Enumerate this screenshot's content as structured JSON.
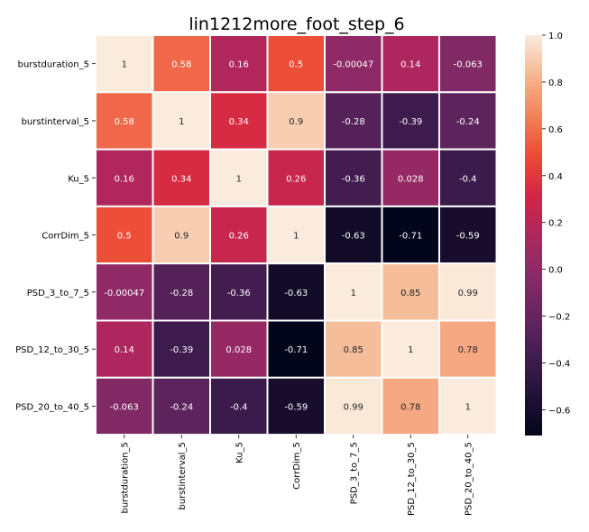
{
  "chart_data": {
    "type": "heatmap",
    "title": "lin1212more_foot_step_6",
    "xlabel": "",
    "ylabel": "",
    "labels": [
      "burstduration_5",
      "burstinterval_5",
      "Ku_5",
      "CorrDim_5",
      "PSD_3_to_7_5",
      "PSD_12_to_30_5",
      "PSD_20_to_40_5"
    ],
    "values": [
      [
        1,
        0.58,
        0.16,
        0.5,
        -0.00047,
        0.14,
        -0.063
      ],
      [
        0.58,
        1,
        0.34,
        0.9,
        -0.28,
        -0.39,
        -0.24
      ],
      [
        0.16,
        0.34,
        1,
        0.26,
        -0.36,
        0.028,
        -0.4
      ],
      [
        0.5,
        0.9,
        0.26,
        1,
        -0.63,
        -0.71,
        -0.59
      ],
      [
        -0.00047,
        -0.28,
        -0.36,
        -0.63,
        1,
        0.85,
        0.99
      ],
      [
        0.14,
        -0.39,
        0.028,
        -0.71,
        0.85,
        1,
        0.78
      ],
      [
        -0.063,
        -0.24,
        -0.4,
        -0.59,
        0.99,
        0.78,
        1
      ]
    ],
    "annotations": [
      [
        "1",
        "0.58",
        "0.16",
        "0.5",
        "-0.00047",
        "0.14",
        "-0.063"
      ],
      [
        "0.58",
        "1",
        "0.34",
        "0.9",
        "-0.28",
        "-0.39",
        "-0.24"
      ],
      [
        "0.16",
        "0.34",
        "1",
        "0.26",
        "-0.36",
        "0.028",
        "-0.4"
      ],
      [
        "0.5",
        "0.9",
        "0.26",
        "1",
        "-0.63",
        "-0.71",
        "-0.59"
      ],
      [
        "-0.00047",
        "-0.28",
        "-0.36",
        "-0.63",
        "1",
        "0.85",
        "0.99"
      ],
      [
        "0.14",
        "-0.39",
        "0.028",
        "-0.71",
        "0.85",
        "1",
        "0.78"
      ],
      [
        "-0.063",
        "-0.24",
        "-0.4",
        "-0.59",
        "0.99",
        "0.78",
        "1"
      ]
    ],
    "colormap": "rocket",
    "vmin": -0.71,
    "vmax": 1.0,
    "colorbar_ticks": [
      1.0,
      0.8,
      0.6,
      0.4,
      0.2,
      0.0,
      -0.2,
      -0.4,
      -0.6
    ],
    "colorbar_tick_labels": [
      "1.0",
      "0.8",
      "0.6",
      "0.4",
      "0.2",
      "0.0",
      "−0.2",
      "−0.4",
      "−0.6"
    ],
    "grid_line_color": "#ffffff",
    "legend": "colorbar-right"
  }
}
